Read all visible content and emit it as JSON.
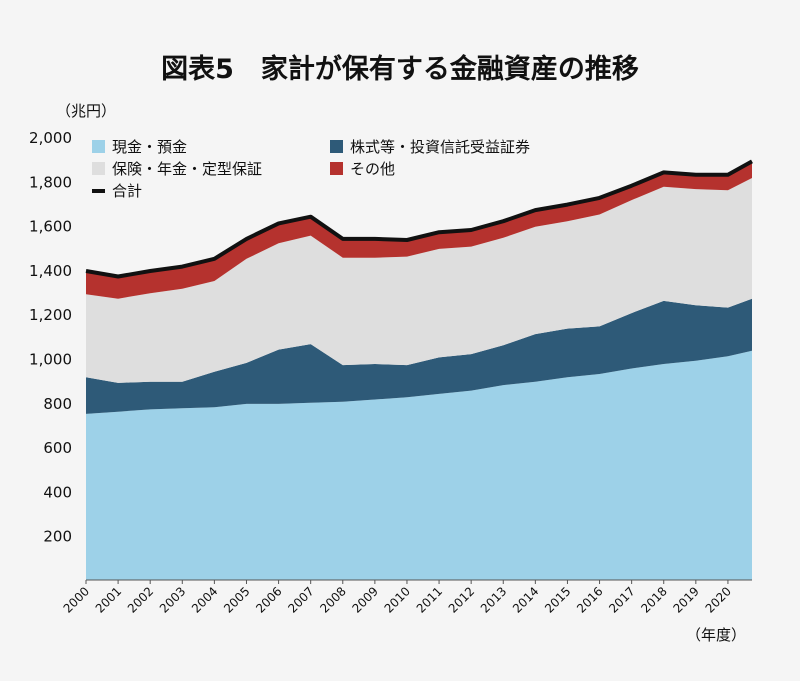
{
  "chart_data": {
    "type": "area",
    "title": "図表5　家計が保有する金融資産の推移",
    "y_unit_label": "（兆円）",
    "x_unit_label": "（年度）",
    "ylim": [
      0,
      2000
    ],
    "yticks": [
      200,
      400,
      600,
      800,
      1000,
      1200,
      1400,
      1600,
      1800,
      2000
    ],
    "ytick_labels": [
      "200",
      "400",
      "600",
      "800",
      "1,000",
      "1,200",
      "1,400",
      "1,600",
      "1,800",
      "2,000"
    ],
    "xticks": [
      "2000",
      "2001",
      "2002",
      "2003",
      "2004",
      "2005",
      "2006",
      "2007",
      "2008",
      "2009",
      "2010",
      "2011",
      "2012",
      "2013",
      "2014",
      "2015",
      "2016",
      "2017",
      "2018",
      "2019",
      "2020"
    ],
    "grid": false,
    "legend_position": "top-left",
    "stacked": true,
    "x": [
      2000,
      2001,
      2002,
      2003,
      2004,
      2005,
      2006,
      2007,
      2008,
      2009,
      2010,
      2011,
      2012,
      2013,
      2014,
      2015,
      2016,
      2017,
      2018,
      2019,
      2020,
      2020.75
    ],
    "series": [
      {
        "name": "現金・預金",
        "color": "#9dd1e8",
        "values": [
          750,
          760,
          770,
          775,
          780,
          795,
          795,
          800,
          805,
          815,
          825,
          840,
          855,
          880,
          895,
          915,
          930,
          955,
          975,
          990,
          1010,
          1035
        ]
      },
      {
        "name": "株式等・投資信託受益証券",
        "color": "#2e5a78",
        "values": [
          165,
          130,
          125,
          120,
          160,
          185,
          245,
          265,
          165,
          160,
          145,
          165,
          165,
          180,
          215,
          220,
          215,
          250,
          285,
          250,
          220,
          235
        ]
      },
      {
        "name": "保険・年金・定型保証",
        "color": "#dedede",
        "values": [
          375,
          380,
          400,
          420,
          410,
          470,
          480,
          490,
          485,
          480,
          490,
          490,
          485,
          485,
          485,
          485,
          505,
          510,
          515,
          525,
          530,
          545
        ]
      },
      {
        "name": "その他",
        "color": "#b5322e",
        "values": [
          105,
          100,
          100,
          100,
          100,
          90,
          90,
          85,
          85,
          85,
          75,
          75,
          75,
          75,
          75,
          75,
          75,
          65,
          65,
          65,
          70,
          75
        ]
      }
    ],
    "total": {
      "name": "合計",
      "color": "#111111"
    }
  }
}
